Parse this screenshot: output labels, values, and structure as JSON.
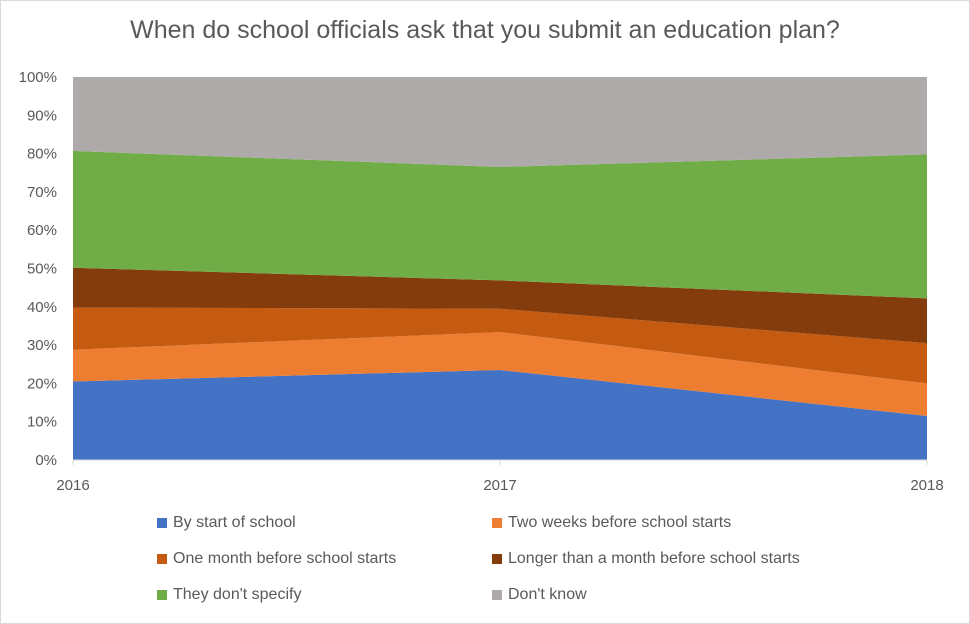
{
  "chart_data": {
    "type": "area",
    "stacked": true,
    "percent": true,
    "title": "When do school officials ask that you submit an education plan?",
    "x": [
      "2016",
      "2017",
      "2018"
    ],
    "ylim": [
      0,
      100
    ],
    "yticks": [
      "0%",
      "10%",
      "20%",
      "30%",
      "40%",
      "50%",
      "60%",
      "70%",
      "80%",
      "90%",
      "100%"
    ],
    "series": [
      {
        "name": "By start of school",
        "color": "#4472C4",
        "values": [
          20.5,
          23.5,
          11.5
        ]
      },
      {
        "name": "Two weeks before school starts",
        "color": "#ED7D31",
        "values": [
          8.3,
          9.9,
          8.5
        ]
      },
      {
        "name": "One month before school starts",
        "color": "#C55A11",
        "values": [
          11.0,
          6.1,
          10.5
        ]
      },
      {
        "name": "Longer than a month before school starts",
        "color": "#843C0C",
        "values": [
          10.4,
          7.4,
          11.7
        ]
      },
      {
        "name": "They don't specify",
        "color": "#70AD47",
        "values": [
          30.5,
          29.6,
          37.6
        ]
      },
      {
        "name": "Don't know",
        "color": "#AEAAAA",
        "values": [
          19.3,
          23.5,
          20.2
        ]
      }
    ],
    "legend_position": "bottom",
    "grid": false
  }
}
